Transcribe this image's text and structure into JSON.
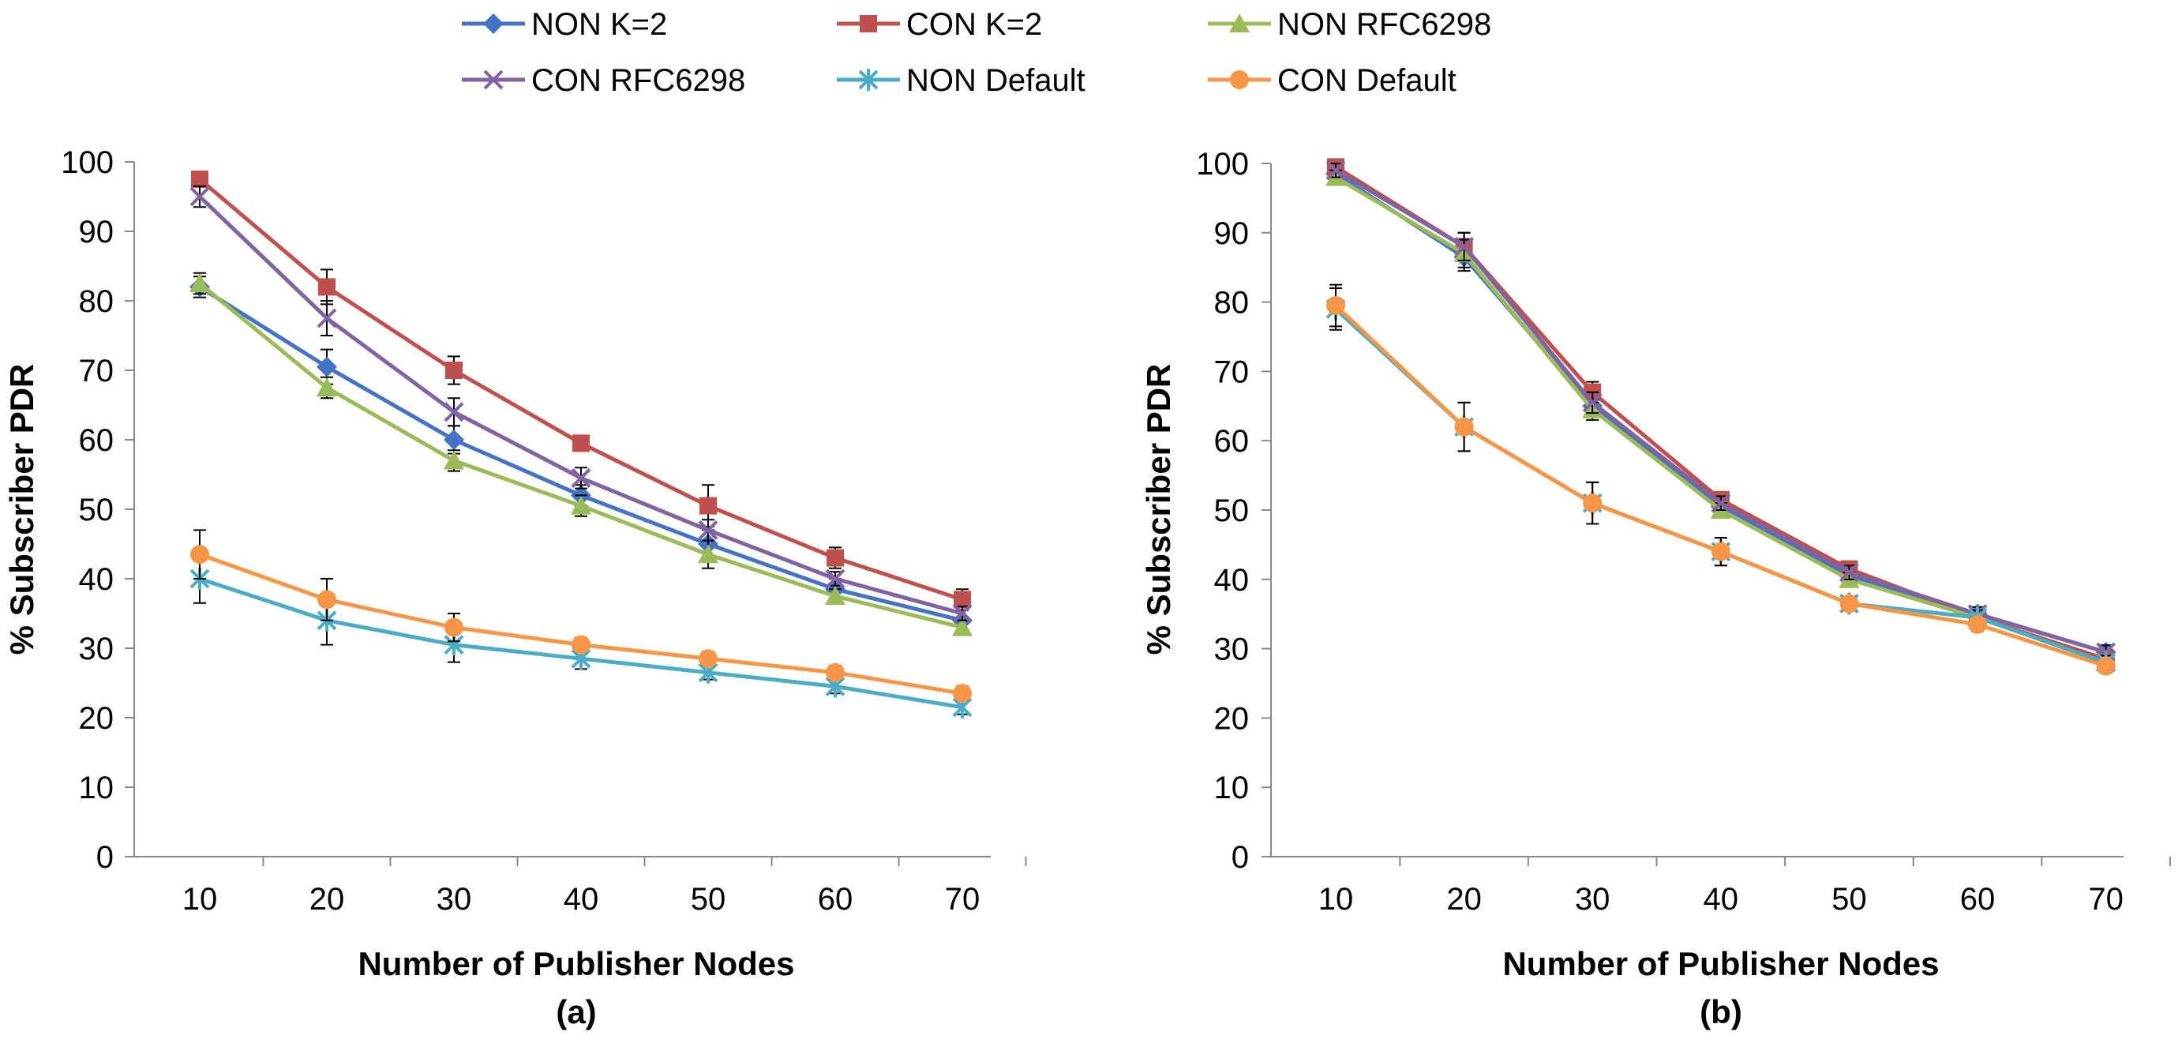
{
  "chart_data": [
    {
      "type": "line",
      "panel_label": "(a)",
      "xlabel": "Number of Publisher Nodes",
      "ylabel": "% Subscriber PDR",
      "ylim": [
        0,
        100
      ],
      "yticks": [
        0,
        10,
        20,
        30,
        40,
        50,
        60,
        70,
        80,
        90,
        100
      ],
      "x": [
        10,
        20,
        30,
        40,
        50,
        60,
        70
      ],
      "grid": false,
      "series": [
        {
          "name": "NON K=2",
          "color": "#4472C4",
          "marker": "diamond",
          "values": [
            82,
            70.5,
            60,
            52,
            45,
            38.5,
            34
          ],
          "err": [
            1.5,
            2.5,
            2,
            1.5,
            2,
            1.5,
            1.5
          ]
        },
        {
          "name": "CON K=2",
          "color": "#C0504D",
          "marker": "square",
          "values": [
            97.5,
            82,
            70,
            59.5,
            50.5,
            43,
            37
          ],
          "err": [
            1,
            2.5,
            2,
            1,
            3,
            1.5,
            1.5
          ]
        },
        {
          "name": "NON RFC6298",
          "color": "#9BBB59",
          "marker": "triangle",
          "values": [
            82.5,
            67.5,
            57,
            50.5,
            43.5,
            37.5,
            33
          ],
          "err": [
            1.5,
            1.5,
            1.5,
            1.5,
            2,
            1,
            1
          ]
        },
        {
          "name": "CON RFC6298",
          "color": "#8064A2",
          "marker": "x",
          "values": [
            95,
            77.5,
            64,
            54.5,
            47,
            40,
            35
          ],
          "err": [
            1.5,
            2.5,
            2,
            1.5,
            1.5,
            1,
            1
          ]
        },
        {
          "name": "NON Default",
          "color": "#4BACC6",
          "marker": "asterisk",
          "values": [
            40,
            34,
            30.5,
            28.5,
            26.5,
            24.5,
            21.5
          ],
          "err": [
            3.5,
            3.5,
            2.5,
            1.5,
            1,
            1,
            1
          ]
        },
        {
          "name": "CON Default",
          "color": "#F79646",
          "marker": "circle",
          "values": [
            43.5,
            37,
            33,
            30.5,
            28.5,
            26.5,
            23.5
          ],
          "err": [
            3.5,
            3,
            2,
            1,
            1,
            1,
            1
          ]
        }
      ]
    },
    {
      "type": "line",
      "panel_label": "(b)",
      "xlabel": "Number of Publisher Nodes",
      "ylabel": "% Subscriber  PDR",
      "ylim": [
        0,
        100
      ],
      "yticks": [
        0,
        10,
        20,
        30,
        40,
        50,
        60,
        70,
        80,
        90,
        100
      ],
      "x": [
        10,
        20,
        30,
        40,
        50,
        60,
        70
      ],
      "grid": false,
      "series": [
        {
          "name": "NON K=2",
          "color": "#4472C4",
          "marker": "diamond",
          "values": [
            98.5,
            86.5,
            65,
            50.5,
            40.5,
            35,
            29.5
          ],
          "err": [
            1,
            2,
            1.5,
            1,
            1,
            1,
            1
          ]
        },
        {
          "name": "CON K=2",
          "color": "#C0504D",
          "marker": "square",
          "values": [
            99.5,
            88,
            67,
            51.5,
            41.5,
            34.5,
            28.5
          ],
          "err": [
            1,
            2,
            1.5,
            1,
            1,
            1,
            1
          ]
        },
        {
          "name": "NON RFC6298",
          "color": "#9BBB59",
          "marker": "triangle",
          "values": [
            98,
            87,
            64.5,
            50,
            40,
            34.5,
            28
          ],
          "err": [
            1,
            2,
            1.5,
            1,
            1,
            1,
            1
          ]
        },
        {
          "name": "CON RFC6298",
          "color": "#8064A2",
          "marker": "x",
          "values": [
            99,
            88,
            65.5,
            51,
            41,
            35,
            29.5
          ],
          "err": [
            1,
            2,
            1.5,
            1,
            1,
            1,
            1
          ]
        },
        {
          "name": "NON Default",
          "color": "#4BACC6",
          "marker": "asterisk",
          "values": [
            79,
            62,
            51,
            44,
            36.5,
            34.5,
            28
          ],
          "err": [
            3,
            3.5,
            3,
            2,
            1,
            1,
            1
          ]
        },
        {
          "name": "CON Default",
          "color": "#F79646",
          "marker": "circle",
          "values": [
            79.5,
            62,
            51,
            44,
            36.5,
            33.5,
            27.5
          ],
          "err": [
            3,
            3.5,
            3,
            2,
            1,
            1,
            1
          ]
        }
      ]
    }
  ]
}
